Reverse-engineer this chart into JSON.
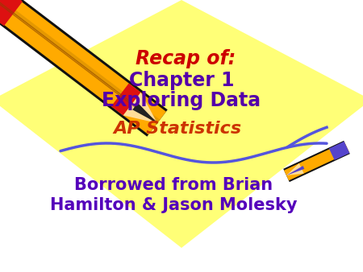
{
  "bg_color": "#ffffff",
  "diamond_color": "#ffff77",
  "title_line1": "Recap of:",
  "title_line2": "Chapter 1",
  "title_line3": "Exploring Data",
  "subtitle": "AP Statistics",
  "credit_line1": "Borrowed from Brian",
  "credit_line2": "Hamilton & Jason Molesky",
  "title_color_recap": "#cc0000",
  "title_color_main": "#5500aa",
  "subtitle_color": "#cc3300",
  "credit_color": "#5500bb",
  "wave_color": "#5555dd",
  "pencil_orange": "#ffaa00",
  "pencil_red": "#dd1111",
  "pencil_black": "#111111",
  "pencil_tip_dark": "#cc8800",
  "small_pencil_tip": "#5544cc"
}
